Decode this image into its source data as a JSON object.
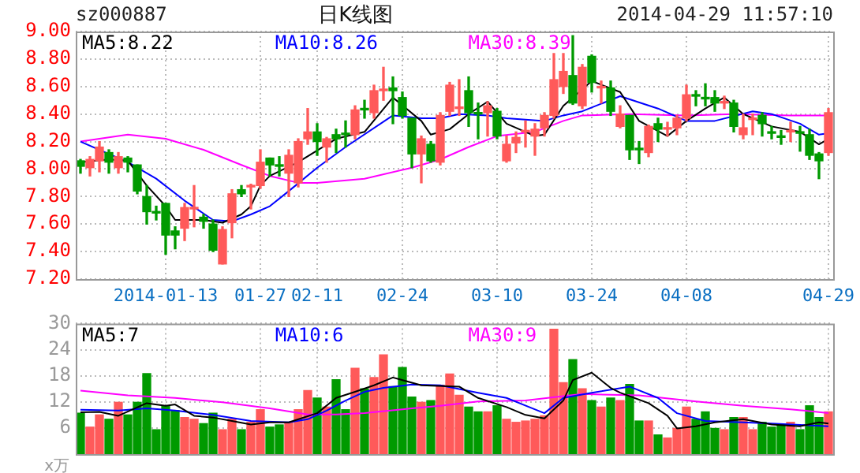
{
  "chart_data": [
    {
      "type": "candlestick",
      "title": "日K线图",
      "subtitle": "sz000887",
      "annotations": [
        "2014-04-29 11:57:10"
      ],
      "categories": [
        null,
        null,
        null,
        null,
        null,
        null,
        null,
        null,
        null,
        "2014-01-13",
        null,
        null,
        null,
        null,
        null,
        null,
        null,
        null,
        null,
        "01-27",
        null,
        null,
        null,
        null,
        null,
        "02-11",
        null,
        null,
        null,
        null,
        null,
        null,
        null,
        null,
        "02-24",
        null,
        null,
        null,
        null,
        null,
        null,
        null,
        null,
        null,
        "03-10",
        null,
        null,
        null,
        null,
        null,
        null,
        null,
        null,
        null,
        "03-24",
        null,
        null,
        null,
        null,
        null,
        null,
        null,
        null,
        null,
        "04-08",
        null,
        null,
        null,
        null,
        null,
        null,
        null,
        null,
        null,
        null,
        null,
        null,
        null,
        null,
        "04-29"
      ],
      "ohlc": [
        [
          8.06,
          8.07,
          7.97,
          8.02
        ],
        [
          8.01,
          8.09,
          7.95,
          8.07
        ],
        [
          8.06,
          8.2,
          7.98,
          8.16
        ],
        [
          8.12,
          8.14,
          7.97,
          8.05
        ],
        [
          8.01,
          8.12,
          7.97,
          8.09
        ],
        [
          8.08,
          8.09,
          7.98,
          8.05
        ],
        [
          8.03,
          8.03,
          7.82,
          7.84
        ],
        [
          7.8,
          7.88,
          7.6,
          7.69
        ],
        [
          7.69,
          7.73,
          7.63,
          7.68
        ],
        [
          7.75,
          7.75,
          7.38,
          7.52
        ],
        [
          7.55,
          7.58,
          7.42,
          7.52
        ],
        [
          7.57,
          7.75,
          7.48,
          7.72
        ],
        [
          7.71,
          7.88,
          7.58,
          7.72
        ],
        [
          7.65,
          7.67,
          7.57,
          7.62
        ],
        [
          7.6,
          7.63,
          7.4,
          7.41
        ],
        [
          7.31,
          7.58,
          7.31,
          7.56
        ],
        [
          7.61,
          7.85,
          7.5,
          7.82
        ],
        [
          7.85,
          7.88,
          7.8,
          7.82
        ],
        [
          7.87,
          7.89,
          7.71,
          7.88
        ],
        [
          7.88,
          8.14,
          7.86,
          8.05
        ],
        [
          8.08,
          8.08,
          7.95,
          8.03
        ],
        [
          8.03,
          8.09,
          7.95,
          8.02
        ],
        [
          7.97,
          8.14,
          7.8,
          8.1
        ],
        [
          7.9,
          8.22,
          7.87,
          8.2
        ],
        [
          8.22,
          8.44,
          8.18,
          8.27
        ],
        [
          8.27,
          8.33,
          8.1,
          8.2
        ],
        [
          8.16,
          8.23,
          8.05,
          8.22
        ],
        [
          8.25,
          8.29,
          8.12,
          8.22
        ],
        [
          8.26,
          8.35,
          8.16,
          8.25
        ],
        [
          8.25,
          8.46,
          8.22,
          8.43
        ],
        [
          8.44,
          8.5,
          8.37,
          8.43
        ],
        [
          8.41,
          8.61,
          8.37,
          8.57
        ],
        [
          8.57,
          8.74,
          8.5,
          8.58
        ],
        [
          8.59,
          8.67,
          8.33,
          8.57
        ],
        [
          8.52,
          8.56,
          8.37,
          8.39
        ],
        [
          8.37,
          8.37,
          8.01,
          8.11
        ],
        [
          8.11,
          8.24,
          7.9,
          8.22
        ],
        [
          8.18,
          8.2,
          8.05,
          8.06
        ],
        [
          8.05,
          8.41,
          8.03,
          8.39
        ],
        [
          8.42,
          8.63,
          8.39,
          8.61
        ],
        [
          8.44,
          8.65,
          8.39,
          8.45
        ],
        [
          8.57,
          8.67,
          8.31,
          8.41
        ],
        [
          8.41,
          8.48,
          8.22,
          8.4
        ],
        [
          8.41,
          8.49,
          8.24,
          8.46
        ],
        [
          8.42,
          8.44,
          8.22,
          8.24
        ],
        [
          8.06,
          8.24,
          8.05,
          8.18
        ],
        [
          8.19,
          8.27,
          8.12,
          8.23
        ],
        [
          8.27,
          8.35,
          8.16,
          8.28
        ],
        [
          8.24,
          8.33,
          8.1,
          8.29
        ],
        [
          8.3,
          8.41,
          8.24,
          8.39
        ],
        [
          8.39,
          8.84,
          8.37,
          8.65
        ],
        [
          8.6,
          8.84,
          8.55,
          8.71
        ],
        [
          8.68,
          8.97,
          8.47,
          8.48
        ],
        [
          8.46,
          8.76,
          8.44,
          8.74
        ],
        [
          8.82,
          8.83,
          8.56,
          8.63
        ],
        [
          8.59,
          8.64,
          8.48,
          8.6
        ],
        [
          8.59,
          8.64,
          8.39,
          8.42
        ],
        [
          8.31,
          8.46,
          8.3,
          8.4
        ],
        [
          8.39,
          8.39,
          8.07,
          8.14
        ],
        [
          8.15,
          8.2,
          8.04,
          8.14
        ],
        [
          8.12,
          8.32,
          8.09,
          8.31
        ],
        [
          8.33,
          8.37,
          8.2,
          8.29
        ],
        [
          8.29,
          8.34,
          8.24,
          8.3
        ],
        [
          8.3,
          8.39,
          8.25,
          8.37
        ],
        [
          8.37,
          8.61,
          8.35,
          8.54
        ],
        [
          8.54,
          8.57,
          8.46,
          8.53
        ],
        [
          8.52,
          8.62,
          8.46,
          8.51
        ],
        [
          8.52,
          8.57,
          8.42,
          8.48
        ],
        [
          8.48,
          8.53,
          8.44,
          8.49
        ],
        [
          8.48,
          8.5,
          8.27,
          8.31
        ],
        [
          8.25,
          8.4,
          8.22,
          8.3
        ],
        [
          8.36,
          8.4,
          8.25,
          8.37
        ],
        [
          8.39,
          8.41,
          8.24,
          8.33
        ],
        [
          8.27,
          8.31,
          8.22,
          8.26
        ],
        [
          8.24,
          8.28,
          8.18,
          8.23
        ],
        [
          8.27,
          8.34,
          8.2,
          8.28
        ],
        [
          8.27,
          8.31,
          8.13,
          8.26
        ],
        [
          8.25,
          8.29,
          8.07,
          8.1
        ],
        [
          8.11,
          8.12,
          7.93,
          8.06
        ],
        [
          8.12,
          8.44,
          8.1,
          8.41
        ]
      ],
      "colors": [
        "#009a00",
        "#ff5a5a",
        "#ff5a5a",
        "#009a00",
        "#ff5a5a",
        "#009a00",
        "#009a00",
        "#009a00",
        "#009a00",
        "#009a00",
        "#009a00",
        "#ff5a5a",
        "#ff5a5a",
        "#009a00",
        "#009a00",
        "#ff5a5a",
        "#ff5a5a",
        "#009a00",
        "#ff5a5a",
        "#ff5a5a",
        "#009a00",
        "#009a00",
        "#ff5a5a",
        "#ff5a5a",
        "#ff5a5a",
        "#009a00",
        "#ff5a5a",
        "#009a00",
        "#009a00",
        "#ff5a5a",
        "#009a00",
        "#ff5a5a",
        "#ff5a5a",
        "#009a00",
        "#009a00",
        "#009a00",
        "#ff5a5a",
        "#009a00",
        "#ff5a5a",
        "#ff5a5a",
        "#ff5a5a",
        "#009a00",
        "#009a00",
        "#ff5a5a",
        "#009a00",
        "#ff5a5a",
        "#ff5a5a",
        "#ff5a5a",
        "#ff5a5a",
        "#ff5a5a",
        "#ff5a5a",
        "#ff5a5a",
        "#009a00",
        "#ff5a5a",
        "#009a00",
        "#ff5a5a",
        "#009a00",
        "#ff5a5a",
        "#009a00",
        "#009a00",
        "#ff5a5a",
        "#009a00",
        "#ff5a5a",
        "#ff5a5a",
        "#ff5a5a",
        "#009a00",
        "#009a00",
        "#009a00",
        "#ff5a5a",
        "#009a00",
        "#ff5a5a",
        "#ff5a5a",
        "#009a00",
        "#009a00",
        "#009a00",
        "#ff5a5a",
        "#009a00",
        "#009a00",
        "#009a00",
        "#ff5a5a"
      ],
      "series": [
        {
          "name": "MA5:8.22",
          "type": "line",
          "color": "#000000",
          "values": [
            8.05,
            null,
            null,
            8.07,
            null,
            8.06,
            null,
            7.88,
            null,
            7.73,
            7.63,
            null,
            null,
            7.63,
            null,
            7.61,
            null,
            7.67,
            7.73,
            7.88,
            7.95,
            null,
            null,
            8.05,
            null,
            null,
            null,
            8.22,
            null,
            null,
            8.27,
            null,
            null,
            8.52,
            null,
            null,
            8.35,
            8.25,
            null,
            8.29,
            null,
            8.4,
            null,
            8.49,
            null,
            8.33,
            null,
            null,
            8.24,
            8.25,
            null,
            8.46,
            8.52,
            null,
            8.64,
            null,
            null,
            8.56,
            null,
            8.35,
            null,
            null,
            8.24,
            null,
            8.35,
            null,
            8.44,
            null,
            8.52,
            null,
            8.4,
            null,
            null,
            8.31,
            null,
            null,
            8.27,
            null,
            8.18,
            8.22
          ]
        },
        {
          "name": "MA10:8.26",
          "type": "line",
          "color": "#0000ff",
          "values": [
            8.2,
            null,
            null,
            null,
            null,
            8.05,
            null,
            null,
            7.93,
            null,
            null,
            7.77,
            null,
            null,
            7.63,
            null,
            7.62,
            null,
            7.67,
            null,
            7.73,
            null,
            7.84,
            null,
            null,
            8.01,
            null,
            null,
            8.16,
            null,
            null,
            null,
            null,
            8.39,
            null,
            null,
            8.37,
            null,
            8.37,
            null,
            8.4,
            null,
            null,
            8.39,
            null,
            8.37,
            null,
            null,
            null,
            8.35,
            null,
            8.39,
            null,
            8.42,
            null,
            null,
            null,
            8.53,
            null,
            null,
            null,
            8.44,
            null,
            null,
            8.35,
            null,
            null,
            8.35,
            null,
            null,
            null,
            8.42,
            null,
            8.4,
            null,
            null,
            8.33,
            null,
            8.25,
            8.26
          ]
        },
        {
          "name": "MA30:8.39",
          "type": "line",
          "color": "#ff00ff",
          "values": [
            8.2,
            null,
            null,
            null,
            null,
            8.25,
            null,
            null,
            null,
            8.22,
            null,
            null,
            null,
            8.14,
            null,
            null,
            null,
            8.03,
            null,
            null,
            7.95,
            null,
            null,
            7.9,
            null,
            7.9,
            null,
            null,
            null,
            null,
            7.93,
            null,
            null,
            null,
            null,
            8.01,
            null,
            null,
            8.07,
            null,
            null,
            8.16,
            null,
            null,
            8.24,
            null,
            null,
            null,
            8.27,
            null,
            null,
            8.35,
            null,
            8.39,
            null,
            null,
            null,
            null,
            8.4,
            null,
            null,
            null,
            null,
            null,
            8.39,
            null,
            null,
            null,
            null,
            8.4,
            null,
            null,
            null,
            null,
            null,
            8.39,
            null,
            null,
            null,
            8.39
          ]
        }
      ],
      "ylim": [
        7.2,
        9.0
      ],
      "yticks": [
        {
          "value": 7.2,
          "label": "7.20"
        },
        {
          "value": 7.4,
          "label": "7.40"
        },
        {
          "value": 7.6,
          "label": "7.60"
        },
        {
          "value": 7.8,
          "label": "7.80"
        },
        {
          "value": 8.0,
          "label": "8.00"
        },
        {
          "value": 8.2,
          "label": "8.20"
        },
        {
          "value": 8.4,
          "label": "8.40"
        },
        {
          "value": 8.6,
          "label": "8.60"
        },
        {
          "value": 8.8,
          "label": "8.80"
        },
        {
          "value": 9.0,
          "label": "9.00"
        }
      ],
      "grid": true,
      "legend": "top left"
    },
    {
      "type": "bar",
      "ylabel": "x万",
      "categories": [
        null,
        null,
        null,
        null,
        null,
        null,
        null,
        null,
        null,
        null,
        null,
        null,
        null,
        null,
        null,
        null,
        null,
        null,
        null,
        null,
        null,
        null,
        null,
        null,
        null,
        null,
        null,
        null,
        null,
        null,
        null,
        null,
        null,
        null,
        null,
        null,
        null,
        null,
        null,
        null,
        null,
        null,
        null,
        null,
        null,
        null,
        null,
        null,
        null,
        null,
        null,
        null,
        null,
        null,
        null,
        null,
        null,
        null,
        null,
        null,
        null,
        null,
        null,
        null,
        null,
        null,
        null,
        null,
        null,
        null,
        null,
        null,
        null,
        null,
        null,
        null,
        null,
        null,
        null,
        null
      ],
      "series": [
        {
          "type": "bar",
          "colors": [
            "#009a00",
            "#ff5a5a",
            "#ff5a5a",
            "#009a00",
            "#ff5a5a",
            "#009a00",
            "#009a00",
            "#009a00",
            "#009a00",
            "#009a00",
            "#009a00",
            "#ff5a5a",
            "#ff5a5a",
            "#009a00",
            "#009a00",
            "#ff5a5a",
            "#ff5a5a",
            "#009a00",
            "#ff5a5a",
            "#ff5a5a",
            "#009a00",
            "#009a00",
            "#ff5a5a",
            "#ff5a5a",
            "#ff5a5a",
            "#009a00",
            "#ff5a5a",
            "#009a00",
            "#009a00",
            "#ff5a5a",
            "#009a00",
            "#ff5a5a",
            "#ff5a5a",
            "#009a00",
            "#009a00",
            "#009a00",
            "#ff5a5a",
            "#009a00",
            "#ff5a5a",
            "#ff5a5a",
            "#ff5a5a",
            "#009a00",
            "#009a00",
            "#ff5a5a",
            "#009a00",
            "#ff5a5a",
            "#ff5a5a",
            "#ff5a5a",
            "#ff5a5a",
            "#ff5a5a",
            "#ff5a5a",
            "#ff5a5a",
            "#009a00",
            "#ff5a5a",
            "#009a00",
            "#ff5a5a",
            "#009a00",
            "#ff5a5a",
            "#009a00",
            "#009a00",
            "#ff5a5a",
            "#009a00",
            "#ff5a5a",
            "#ff5a5a",
            "#ff5a5a",
            "#009a00",
            "#009a00",
            "#009a00",
            "#ff5a5a",
            "#009a00",
            "#ff5a5a",
            "#ff5a5a",
            "#009a00",
            "#009a00",
            "#009a00",
            "#ff5a5a",
            "#009a00",
            "#009a00",
            "#009a00",
            "#ff5a5a"
          ],
          "values": [
            9.4,
            6.2,
            9.0,
            8.0,
            11.9,
            9.0,
            11.9,
            18.5,
            5.6,
            11.1,
            10.0,
            8.4,
            8.0,
            7.0,
            9.4,
            5.6,
            8.0,
            5.6,
            7.3,
            10.2,
            6.2,
            6.7,
            7.3,
            10.2,
            14.6,
            12.9,
            10.8,
            17.1,
            10.2,
            19.7,
            15.0,
            17.6,
            22.8,
            15.5,
            19.9,
            13.1,
            11.9,
            12.3,
            15.8,
            18.4,
            13.5,
            10.8,
            9.7,
            9.7,
            11.1,
            8.0,
            7.3,
            7.6,
            8.0,
            8.8,
            28.7,
            16.4,
            21.7,
            15.0,
            12.3,
            10.8,
            12.9,
            12.3,
            16.0,
            7.6,
            7.6,
            4.4,
            3.7,
            5.9,
            10.8,
            8.0,
            9.7,
            5.9,
            5.6,
            8.4,
            8.4,
            5.6,
            7.3,
            6.2,
            6.8,
            7.3,
            5.6,
            11.1,
            8.4,
            9.7
          ]
        },
        {
          "name": "MA5:7",
          "type": "line",
          "color": "#000000",
          "values": [
            9.6,
            null,
            9.7,
            null,
            8.8,
            null,
            null,
            11.7,
            null,
            11.1,
            11.4,
            null,
            8.8,
            null,
            8.4,
            null,
            7.6,
            null,
            6.8,
            null,
            7.3,
            null,
            7.3,
            null,
            null,
            9.4,
            null,
            12.9,
            null,
            14.3,
            null,
            15.8,
            null,
            17.6,
            null,
            null,
            15.8,
            null,
            null,
            null,
            15.5,
            null,
            12.9,
            null,
            null,
            10.8,
            null,
            9.0,
            null,
            8.2,
            null,
            12.3,
            17.0,
            null,
            18.7,
            null,
            15.2,
            14.1,
            null,
            null,
            11.7,
            null,
            8.8,
            5.9,
            null,
            6.4,
            null,
            7.3,
            null,
            null,
            8.0,
            null,
            null,
            6.8,
            null,
            null,
            6.4,
            null,
            7.3,
            7
          ]
        },
        {
          "name": "MA10:6",
          "type": "line",
          "color": "#0000ff",
          "values": [
            10.2,
            null,
            null,
            null,
            10.0,
            null,
            null,
            10.5,
            null,
            null,
            10.0,
            null,
            null,
            null,
            9.0,
            null,
            null,
            null,
            7.6,
            null,
            null,
            null,
            7.3,
            null,
            8.0,
            null,
            10.0,
            null,
            12.3,
            null,
            14.3,
            null,
            15.2,
            null,
            null,
            16.0,
            null,
            null,
            15.8,
            null,
            null,
            null,
            14.1,
            null,
            null,
            12.9,
            null,
            null,
            null,
            9.4,
            null,
            12.9,
            null,
            null,
            14.1,
            null,
            null,
            null,
            15.5,
            null,
            null,
            12.9,
            null,
            9.4,
            null,
            null,
            7.6,
            null,
            null,
            null,
            7.3,
            null,
            null,
            7.0,
            null,
            null,
            6.7,
            null,
            null,
            6.4
          ]
        },
        {
          "name": "MA30:9",
          "type": "line",
          "color": "#ff00ff",
          "values": [
            14.6,
            null,
            null,
            null,
            null,
            13.5,
            null,
            null,
            null,
            null,
            12.9,
            null,
            null,
            null,
            null,
            11.9,
            null,
            null,
            null,
            null,
            10.5,
            null,
            null,
            null,
            9.1,
            null,
            null,
            9.1,
            null,
            null,
            9.4,
            null,
            null,
            null,
            null,
            10.5,
            null,
            null,
            11.1,
            null,
            null,
            null,
            12.1,
            null,
            null,
            null,
            null,
            12.3,
            null,
            null,
            null,
            null,
            null,
            13.8,
            null,
            null,
            null,
            null,
            null,
            13.5,
            null,
            null,
            null,
            null,
            null,
            12.1,
            null,
            null,
            null,
            null,
            11.1,
            null,
            null,
            null,
            null,
            10.3,
            null,
            null,
            null,
            9.4
          ]
        }
      ],
      "ylim": [
        0,
        30
      ],
      "yticks": [
        6,
        12,
        18,
        24,
        30
      ],
      "grid": true,
      "legend": "top left",
      "tick_labels": "y"
    }
  ]
}
